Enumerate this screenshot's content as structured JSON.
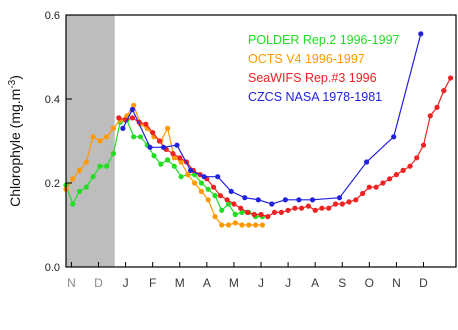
{
  "chart_data": {
    "type": "line",
    "ylabel": "Chlorophyle (mg.m",
    "ylabel_sup": "-3",
    "ylabel_close": ")",
    "ylim": [
      0,
      0.6
    ],
    "yticks": [
      {
        "value": 0.0,
        "label": "0.0"
      },
      {
        "value": 0.2,
        "label": "0.2"
      },
      {
        "value": 0.4,
        "label": "0.4"
      },
      {
        "value": 0.6,
        "label": "0.6"
      }
    ],
    "xlim": [
      -0.2,
      14.2
    ],
    "months": [
      {
        "x": 0,
        "label": "N",
        "color": "#8a8a8a"
      },
      {
        "x": 1,
        "label": "D",
        "color": "#8a8a8a"
      },
      {
        "x": 2,
        "label": "J",
        "color": "#3a3a3a"
      },
      {
        "x": 3,
        "label": "F",
        "color": "#3a3a3a"
      },
      {
        "x": 4,
        "label": "M",
        "color": "#3a3a3a"
      },
      {
        "x": 5,
        "label": "A",
        "color": "#3a3a3a"
      },
      {
        "x": 6,
        "label": "M",
        "color": "#3a3a3a"
      },
      {
        "x": 7,
        "label": "J",
        "color": "#3a3a3a"
      },
      {
        "x": 8,
        "label": "J",
        "color": "#3a3a3a"
      },
      {
        "x": 9,
        "label": "A",
        "color": "#3a3a3a"
      },
      {
        "x": 10,
        "label": "S",
        "color": "#3a3a3a"
      },
      {
        "x": 11,
        "label": "O",
        "color": "#3a3a3a"
      },
      {
        "x": 12,
        "label": "N",
        "color": "#3a3a3a"
      },
      {
        "x": 13,
        "label": "D",
        "color": "#3a3a3a"
      }
    ],
    "shaded_range": [
      -0.2,
      1.6
    ],
    "shade_color": "#bdbdbd",
    "legend_position": "top-right",
    "series": [
      {
        "name": "POLDER Rep.2 1996-1997",
        "color": "#22dd22",
        "x": [
          -0.2,
          0.05,
          0.3,
          0.55,
          0.8,
          1.05,
          1.3,
          1.55,
          1.8,
          2.05,
          2.3,
          2.55,
          2.8,
          3.05,
          3.3,
          3.55,
          3.8,
          4.05,
          4.3,
          4.55,
          4.8,
          5.05,
          5.3,
          5.55,
          5.8,
          6.05,
          6.3,
          6.55,
          6.8,
          7.05
        ],
        "y": [
          0.195,
          0.15,
          0.18,
          0.19,
          0.215,
          0.24,
          0.24,
          0.27,
          0.345,
          0.35,
          0.31,
          0.31,
          0.29,
          0.265,
          0.245,
          0.255,
          0.24,
          0.215,
          0.22,
          0.22,
          0.2,
          0.185,
          0.17,
          0.135,
          0.15,
          0.125,
          0.13,
          0.13,
          0.12,
          0.12
        ]
      },
      {
        "name": "OCTS V4 1996-1997",
        "color": "#ff9900",
        "x": [
          -0.2,
          0.05,
          0.3,
          0.55,
          0.8,
          1.05,
          1.3,
          1.55,
          1.8,
          2.05,
          2.3,
          2.55,
          2.8,
          3.05,
          3.3,
          3.55,
          3.8,
          4.05,
          4.3,
          4.55,
          4.8,
          5.05,
          5.3,
          5.55,
          5.8,
          6.05,
          6.3,
          6.55,
          6.8,
          7.05
        ],
        "y": [
          0.185,
          0.21,
          0.23,
          0.25,
          0.31,
          0.3,
          0.31,
          0.33,
          0.35,
          0.36,
          0.385,
          0.34,
          0.33,
          0.31,
          0.3,
          0.33,
          0.26,
          0.25,
          0.22,
          0.2,
          0.18,
          0.16,
          0.12,
          0.1,
          0.1,
          0.105,
          0.1,
          0.1,
          0.1,
          0.1
        ]
      },
      {
        "name": "SeaWIFS Rep.#3 1996",
        "color": "#ee2222",
        "x": [
          1.75,
          2.0,
          2.25,
          2.5,
          2.75,
          3.0,
          3.25,
          3.5,
          3.75,
          4.0,
          4.25,
          4.5,
          4.75,
          5.0,
          5.25,
          5.5,
          5.75,
          6.0,
          6.25,
          6.5,
          6.75,
          7.0,
          7.25,
          7.5,
          7.75,
          8.0,
          8.25,
          8.5,
          8.75,
          9.0,
          9.25,
          9.5,
          9.75,
          10.0,
          10.25,
          10.5,
          10.75,
          11.0,
          11.25,
          11.5,
          11.75,
          12.0,
          12.25,
          12.5,
          12.75,
          13.0,
          13.25,
          13.5,
          13.75,
          14.0
        ],
        "y": [
          0.355,
          0.35,
          0.355,
          0.345,
          0.34,
          0.32,
          0.3,
          0.28,
          0.27,
          0.26,
          0.25,
          0.23,
          0.22,
          0.21,
          0.19,
          0.17,
          0.16,
          0.15,
          0.14,
          0.13,
          0.125,
          0.125,
          0.12,
          0.13,
          0.13,
          0.135,
          0.14,
          0.14,
          0.145,
          0.135,
          0.14,
          0.14,
          0.15,
          0.15,
          0.155,
          0.16,
          0.175,
          0.19,
          0.19,
          0.2,
          0.21,
          0.22,
          0.23,
          0.24,
          0.26,
          0.29,
          0.36,
          0.38,
          0.42,
          0.45
        ]
      },
      {
        "name": "CZCS NASA 1978-1981",
        "color": "#2222dd",
        "x": [
          1.9,
          2.25,
          2.9,
          3.4,
          3.9,
          4.4,
          4.9,
          5.4,
          5.9,
          6.4,
          6.9,
          7.4,
          7.9,
          8.4,
          8.9,
          9.9,
          10.9,
          11.9,
          12.9
        ],
        "y": [
          0.33,
          0.375,
          0.285,
          0.285,
          0.29,
          0.23,
          0.215,
          0.215,
          0.18,
          0.165,
          0.16,
          0.15,
          0.16,
          0.16,
          0.16,
          0.165,
          0.25,
          0.31,
          0.555
        ]
      }
    ]
  }
}
